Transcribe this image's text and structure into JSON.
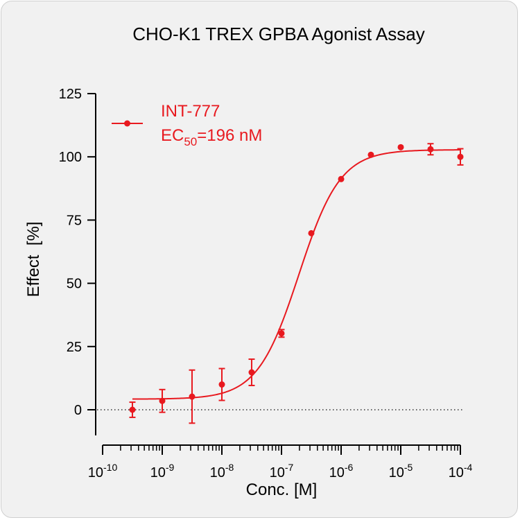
{
  "chart_data": {
    "type": "scatter",
    "title": "CHO-K1 TREX GPBA Agonist Assay",
    "xlabel": "Conc. [M]",
    "ylabel": "Effect  [%]",
    "x_scale": "log10",
    "xlim": [
      1e-10,
      0.0001
    ],
    "ylim": [
      -10,
      125
    ],
    "x_tick_labels": [
      {
        "base": "10",
        "exp": "-10"
      },
      {
        "base": "10",
        "exp": "-9"
      },
      {
        "base": "10",
        "exp": "-8"
      },
      {
        "base": "10",
        "exp": "-7"
      },
      {
        "base": "10",
        "exp": "-6"
      },
      {
        "base": "10",
        "exp": "-5"
      },
      {
        "base": "10",
        "exp": "-4"
      }
    ],
    "y_ticks": [
      "0",
      "25",
      "50",
      "75",
      "100",
      "125"
    ],
    "reference_line": {
      "y": 0,
      "style": "dotted"
    },
    "legend": {
      "position": "top-left",
      "label": "INT-777",
      "ec50_main": "EC",
      "ec50_sub": "50",
      "ec50_value": "=196 nM"
    },
    "series": [
      {
        "name": "INT-777",
        "color": "#e8191f",
        "points": [
          {
            "x": 3.16e-10,
            "y": 0.0,
            "err": 3.0
          },
          {
            "x": 1e-09,
            "y": 3.5,
            "err": 4.5
          },
          {
            "x": 3.16e-09,
            "y": 5.2,
            "err": 10.5
          },
          {
            "x": 1e-08,
            "y": 10.0,
            "err": 6.3
          },
          {
            "x": 3.16e-08,
            "y": 14.8,
            "err": 5.2
          },
          {
            "x": 1e-07,
            "y": 30.2,
            "err": 1.5
          },
          {
            "x": 3.16e-07,
            "y": 69.8,
            "err": 0
          },
          {
            "x": 1e-06,
            "y": 91.2,
            "err": 0
          },
          {
            "x": 3.16e-06,
            "y": 100.8,
            "err": 0
          },
          {
            "x": 1e-05,
            "y": 103.8,
            "err": 0
          },
          {
            "x": 3.16e-05,
            "y": 103.0,
            "err": 2.2
          },
          {
            "x": 0.0001,
            "y": 100.0,
            "err": 3.2
          }
        ],
        "fit": {
          "bottom": 4.2,
          "top": 102.8,
          "ec50": 1.96e-07,
          "hill": 1.25
        }
      }
    ]
  }
}
